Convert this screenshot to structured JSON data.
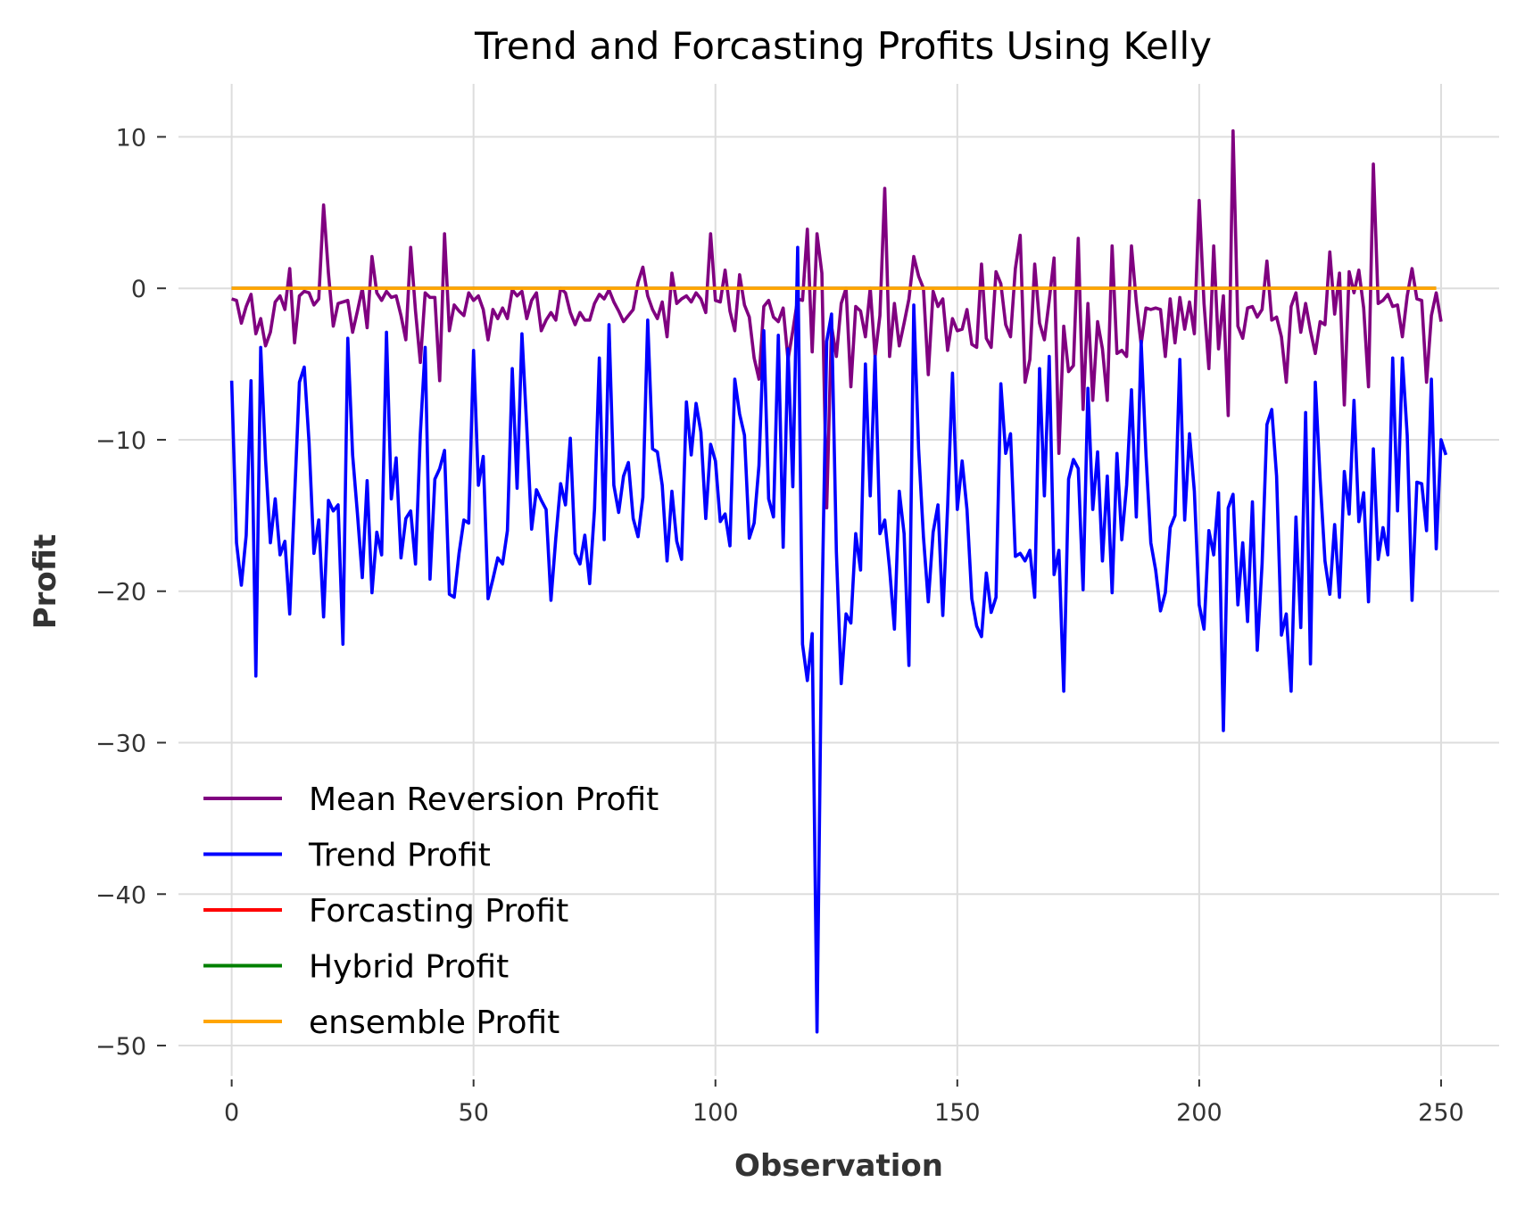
{
  "chart_data": {
    "type": "line",
    "title": "Trend and Forcasting Profits Using Kelly",
    "xlabel": "Observation",
    "ylabel": "Profit",
    "xlim": [
      -11,
      262
    ],
    "ylim": [
      -52,
      13.5
    ],
    "xticks": [
      0,
      50,
      100,
      150,
      200,
      250
    ],
    "yticks": [
      10,
      0,
      -10,
      -20,
      -30,
      -40,
      -50
    ],
    "xtick_labels": [
      "0",
      "50",
      "100",
      "150",
      "200",
      "250"
    ],
    "ytick_labels": [
      "10",
      "0",
      "−10",
      "−20",
      "−30",
      "−40",
      "−50"
    ],
    "grid": true,
    "legend_position": "lower-left",
    "series": [
      {
        "name": "Mean Reversion Profit",
        "color": "#800080",
        "values": [
          -0.7,
          -0.8,
          -2.3,
          -1.2,
          -0.4,
          -3.0,
          -2.0,
          -3.8,
          -2.9,
          -0.9,
          -0.5,
          -1.4,
          1.3,
          -3.6,
          -0.5,
          -0.2,
          -0.3,
          -1.1,
          -0.7,
          5.5,
          1.0,
          -2.5,
          -1.0,
          -0.9,
          -0.8,
          -2.9,
          -1.5,
          0.0,
          -2.6,
          2.1,
          -0.3,
          -0.8,
          -0.2,
          -0.6,
          -0.5,
          -1.8,
          -3.4,
          2.7,
          -1.5,
          -4.9,
          -0.3,
          -0.6,
          -0.6,
          -6.1,
          3.6,
          -2.8,
          -1.1,
          -1.5,
          -1.8,
          -0.3,
          -0.8,
          -0.5,
          -1.4,
          -3.4,
          -1.4,
          -2.0,
          -1.3,
          -2.0,
          -0.1,
          -0.5,
          -0.2,
          -2.0,
          -0.8,
          -0.3,
          -2.8,
          -2.1,
          -1.6,
          -2.1,
          0.0,
          -0.3,
          -1.6,
          -2.4,
          -1.6,
          -2.1,
          -2.1,
          -1.0,
          -0.4,
          -0.7,
          -0.1,
          -0.9,
          -1.5,
          -2.2,
          -1.8,
          -1.4,
          0.4,
          1.4,
          -0.5,
          -1.4,
          -2.0,
          -0.9,
          -3.2,
          1.0,
          -1.0,
          -0.7,
          -0.5,
          -0.9,
          -0.3,
          -0.7,
          -1.6,
          3.6,
          -0.8,
          -0.9,
          1.2,
          -1.5,
          -2.8,
          0.9,
          -1.1,
          -1.9,
          -4.6,
          -6.0,
          -1.2,
          -0.8,
          -1.9,
          -2.2,
          -1.3,
          -4.7,
          -2.8,
          -0.7,
          -0.8,
          3.9,
          -4.2,
          3.6,
          1.0,
          -14.5,
          -2.5,
          -4.5,
          -1.0,
          0.0,
          -6.5,
          -1.2,
          -1.5,
          -3.2,
          0.0,
          -4.5,
          -1.8,
          6.6,
          -4.5,
          -1.0,
          -3.8,
          -2.3,
          -0.7,
          2.1,
          0.8,
          0.0,
          -5.7,
          -0.2,
          -1.2,
          -0.7,
          -4.1,
          -2.0,
          -2.8,
          -2.7,
          -1.4,
          -3.7,
          -3.9,
          1.6,
          -3.3,
          -3.9,
          1.1,
          0.3,
          -2.4,
          -3.2,
          1.3,
          3.5,
          -6.2,
          -4.7,
          1.6,
          -2.3,
          -3.4,
          -0.8,
          2.0,
          -10.9,
          -2.5,
          -5.5,
          -5.1,
          3.3,
          -8.0,
          -1.0,
          -7.4,
          -2.2,
          -4.0,
          -7.4,
          2.8,
          -4.3,
          -4.1,
          -4.5,
          2.8,
          -0.9,
          -3.7,
          -1.3,
          -1.4,
          -1.3,
          -1.4,
          -4.5,
          -0.7,
          -3.6,
          -0.6,
          -2.7,
          -0.9,
          -3.0,
          5.8,
          -1.0,
          -5.3,
          2.8,
          -4.0,
          -0.5,
          -8.4,
          10.4,
          -2.5,
          -3.3,
          -1.3,
          -1.2,
          -1.9,
          -1.4,
          1.8,
          -2.1,
          -1.9,
          -3.2,
          -6.2,
          -1.2,
          -0.3,
          -2.9,
          -1.0,
          -2.8,
          -4.3,
          -2.2,
          -2.4,
          2.4,
          -1.7,
          1.0,
          -7.7,
          1.1,
          -0.3,
          1.2,
          -1.3,
          -6.5,
          8.2,
          -1.0,
          -0.8,
          -0.4,
          -1.2,
          -1.1,
          -3.2,
          -0.5,
          1.3,
          -0.7,
          -0.8,
          -6.2,
          -1.8,
          -0.3,
          -2.2
        ]
      },
      {
        "name": "Trend Profit",
        "color": "#0000ff",
        "values": [
          -6.1,
          -16.8,
          -19.6,
          -16.3,
          -6.1,
          -25.6,
          -3.9,
          -11.3,
          -16.8,
          -13.9,
          -17.6,
          -16.7,
          -21.5,
          -13.8,
          -6.2,
          -5.2,
          -10.2,
          -17.5,
          -15.3,
          -21.7,
          -14.0,
          -14.7,
          -14.3,
          -23.5,
          -3.3,
          -11.0,
          -14.9,
          -19.1,
          -12.7,
          -20.1,
          -16.1,
          -17.6,
          -2.9,
          -13.9,
          -11.2,
          -17.8,
          -15.2,
          -14.7,
          -18.2,
          -9.6,
          -3.9,
          -19.2,
          -12.6,
          -11.9,
          -10.7,
          -20.2,
          -20.4,
          -17.5,
          -15.3,
          -15.5,
          -4.1,
          -13.0,
          -11.1,
          -20.5,
          -19.2,
          -17.8,
          -18.2,
          -16.0,
          -5.3,
          -13.2,
          -3.0,
          -9.2,
          -15.9,
          -13.3,
          -14.0,
          -14.6,
          -20.6,
          -16.5,
          -12.9,
          -14.3,
          -9.9,
          -17.5,
          -18.2,
          -16.3,
          -19.5,
          -14.6,
          -4.6,
          -16.6,
          -2.4,
          -13.0,
          -14.8,
          -12.4,
          -11.5,
          -15.2,
          -16.4,
          -13.8,
          -2.1,
          -10.6,
          -10.8,
          -13.0,
          -18.0,
          -13.4,
          -16.7,
          -17.9,
          -7.5,
          -11.0,
          -7.6,
          -9.5,
          -15.2,
          -10.3,
          -11.4,
          -15.4,
          -14.9,
          -17.0,
          -6.0,
          -8.3,
          -9.7,
          -16.5,
          -15.5,
          -11.7,
          -2.8,
          -13.9,
          -15.1,
          -3.1,
          -17.1,
          -4.0,
          -13.1,
          2.7,
          -23.5,
          -25.9,
          -22.8,
          -49.1,
          -21.6,
          -3.5,
          -1.7,
          -17.4,
          -26.1,
          -21.5,
          -22.1,
          -16.2,
          -18.6,
          -5.0,
          -13.7,
          -4.5,
          -16.2,
          -15.3,
          -18.5,
          -22.5,
          -13.4,
          -16.2,
          -24.9,
          -1.1,
          -10.6,
          -16.4,
          -20.7,
          -16.1,
          -14.3,
          -21.6,
          -14.4,
          -5.6,
          -14.6,
          -11.4,
          -14.6,
          -20.5,
          -22.3,
          -23.0,
          -18.8,
          -21.4,
          -20.4,
          -6.3,
          -10.9,
          -9.6,
          -17.7,
          -17.5,
          -18.0,
          -17.3,
          -20.4,
          -5.3,
          -13.7,
          -4.5,
          -18.9,
          -17.3,
          -26.6,
          -12.6,
          -11.3,
          -11.9,
          -19.9,
          -6.6,
          -14.6,
          -10.8,
          -18.0,
          -12.4,
          -20.1,
          -10.9,
          -16.6,
          -13.0,
          -6.7,
          -15.1,
          -3.5,
          -11.0,
          -16.8,
          -18.6,
          -21.3,
          -20.1,
          -15.8,
          -15.0,
          -4.7,
          -15.3,
          -9.6,
          -13.4,
          -20.9,
          -22.5,
          -16.0,
          -17.6,
          -13.5,
          -29.2,
          -14.5,
          -13.6,
          -20.9,
          -16.8,
          -22.0,
          -14.1,
          -23.9,
          -18.2,
          -9.0,
          -8.0,
          -12.4,
          -22.9,
          -21.5,
          -26.6,
          -15.1,
          -22.4,
          -8.2,
          -24.8,
          -6.2,
          -12.6,
          -18.0,
          -20.2,
          -15.6,
          -20.4,
          -12.1,
          -14.9,
          -7.4,
          -15.4,
          -13.5,
          -20.7,
          -10.6,
          -17.9,
          -15.8,
          -17.6,
          -4.6,
          -14.7,
          -4.6,
          -9.7,
          -20.6,
          -12.8,
          -12.9,
          -16.0,
          -6.0,
          -17.2,
          -10.0,
          -11.0
        ]
      },
      {
        "name": "Forcasting Profit",
        "color": "#ff0000",
        "constant": 0,
        "count": 250
      },
      {
        "name": "Hybrid Profit",
        "color": "#008000",
        "constant": 0,
        "count": 250
      },
      {
        "name": "ensemble Profit",
        "color": "#ffa500",
        "constant": 0,
        "count": 250
      }
    ]
  }
}
